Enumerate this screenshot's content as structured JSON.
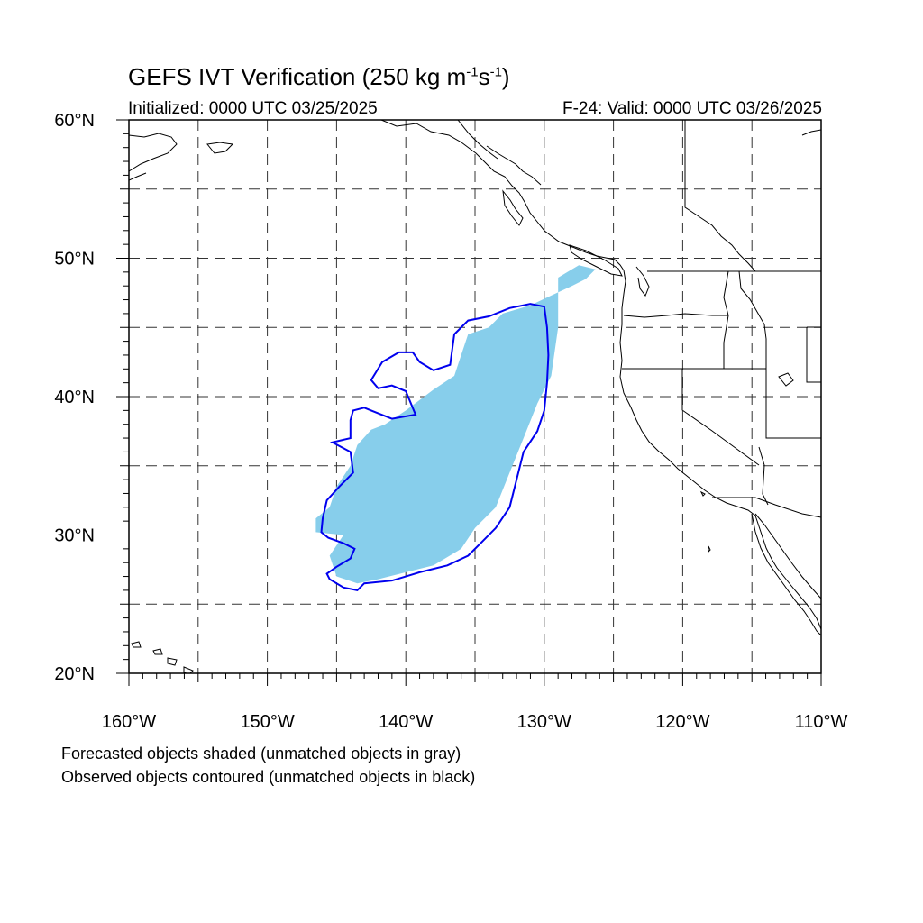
{
  "title": {
    "main": "GEFS IVT Verification (250 kg m",
    "sup1": "-1",
    "mid": "s",
    "sup2": "-1",
    "close": ")"
  },
  "subtitle_left": "Initialized: 0000 UTC 03/25/2025",
  "subtitle_right": "F-24: Valid: 0000 UTC 03/26/2025",
  "map": {
    "projection": "cylindrical-equidistant",
    "lon_range": [
      -160,
      -110
    ],
    "lat_range": [
      20,
      60
    ],
    "grid": "dashed every 5 degrees",
    "lat_labels": [
      {
        "lat": 60,
        "text": "60°N"
      },
      {
        "lat": 50,
        "text": "50°N"
      },
      {
        "lat": 40,
        "text": "40°N"
      },
      {
        "lat": 30,
        "text": "30°N"
      },
      {
        "lat": 20,
        "text": "20°N"
      }
    ],
    "lon_labels": [
      {
        "lon": -160,
        "text": "160°W"
      },
      {
        "lon": -150,
        "text": "150°W"
      },
      {
        "lon": -140,
        "text": "140°W"
      },
      {
        "lon": -130,
        "text": "130°W"
      },
      {
        "lon": -120,
        "text": "120°W"
      },
      {
        "lon": -110,
        "text": "110°W"
      }
    ],
    "forecast_object": {
      "color": "#87ceeb",
      "polygon": [
        [
          -145,
          33.5
        ],
        [
          -144,
          35
        ],
        [
          -143.5,
          36.5
        ],
        [
          -142.5,
          37.6
        ],
        [
          -141.5,
          38
        ],
        [
          -140,
          39
        ],
        [
          -138,
          40.5
        ],
        [
          -136.5,
          41.5
        ],
        [
          -136,
          43
        ],
        [
          -135.5,
          44.5
        ],
        [
          -134,
          45
        ],
        [
          -133,
          46
        ],
        [
          -131,
          46.6
        ],
        [
          -129.5,
          47.3
        ],
        [
          -128,
          48
        ],
        [
          -127,
          48.5
        ],
        [
          -126.3,
          49.2
        ],
        [
          -127.5,
          49.5
        ],
        [
          -129,
          48.6
        ],
        [
          -129,
          45
        ],
        [
          -129.5,
          41.5
        ],
        [
          -130.5,
          39.5
        ],
        [
          -131.5,
          37
        ],
        [
          -132.5,
          34.5
        ],
        [
          -133.5,
          32
        ],
        [
          -135,
          30.5
        ],
        [
          -136,
          29
        ],
        [
          -138,
          27.8
        ],
        [
          -140,
          27.3
        ],
        [
          -142,
          26.8
        ],
        [
          -143.5,
          26.5
        ],
        [
          -145,
          27
        ],
        [
          -145.5,
          28.5
        ],
        [
          -144.5,
          30
        ],
        [
          -146.5,
          30.2
        ],
        [
          -146.5,
          31.2
        ],
        [
          -145.5,
          32
        ],
        [
          -145,
          33.5
        ]
      ]
    },
    "observed_object": {
      "color": "#0000ee",
      "polygon": [
        [
          -145.5,
          26.8
        ],
        [
          -144.5,
          26.2
        ],
        [
          -143.5,
          26
        ],
        [
          -143,
          26.5
        ],
        [
          -141,
          26.7
        ],
        [
          -139,
          27.3
        ],
        [
          -137,
          27.8
        ],
        [
          -135.5,
          28.5
        ],
        [
          -134.5,
          29.5
        ],
        [
          -133.5,
          30.5
        ],
        [
          -132.5,
          32
        ],
        [
          -132,
          34
        ],
        [
          -131.5,
          36
        ],
        [
          -130.5,
          37.5
        ],
        [
          -130,
          39
        ],
        [
          -129.8,
          41
        ],
        [
          -129.7,
          43
        ],
        [
          -129.8,
          45
        ],
        [
          -130,
          46.5
        ],
        [
          -131,
          46.7
        ],
        [
          -132.5,
          46.4
        ],
        [
          -134,
          45.8
        ],
        [
          -135.5,
          45.5
        ],
        [
          -136.5,
          44.5
        ],
        [
          -136.8,
          42.3
        ],
        [
          -138,
          41.9
        ],
        [
          -139,
          42.5
        ],
        [
          -139.5,
          43.2
        ],
        [
          -140.5,
          43.2
        ],
        [
          -141.7,
          42.5
        ],
        [
          -142.5,
          41.2
        ],
        [
          -142,
          40.6
        ],
        [
          -141,
          40.8
        ],
        [
          -140,
          40.4
        ],
        [
          -139.3,
          38.7
        ],
        [
          -141,
          38.4
        ],
        [
          -142.5,
          39
        ],
        [
          -143,
          39.2
        ],
        [
          -143.8,
          39
        ],
        [
          -144,
          38.3
        ],
        [
          -144,
          37
        ],
        [
          -145.3,
          36.7
        ],
        [
          -144,
          36
        ],
        [
          -143.8,
          34.5
        ],
        [
          -144.8,
          33.5
        ],
        [
          -145.7,
          32.5
        ],
        [
          -146,
          31.2
        ],
        [
          -146.1,
          30.2
        ],
        [
          -145.6,
          29.8
        ],
        [
          -144.5,
          29.4
        ],
        [
          -143.7,
          29
        ],
        [
          -144,
          28.3
        ],
        [
          -145,
          27.7
        ],
        [
          -145.7,
          27.2
        ],
        [
          -145.5,
          26.8
        ]
      ]
    }
  },
  "legend": {
    "line1": "Forecasted objects shaded (unmatched objects in gray)",
    "line2": "Observed objects contoured (unmatched objects in black)"
  }
}
